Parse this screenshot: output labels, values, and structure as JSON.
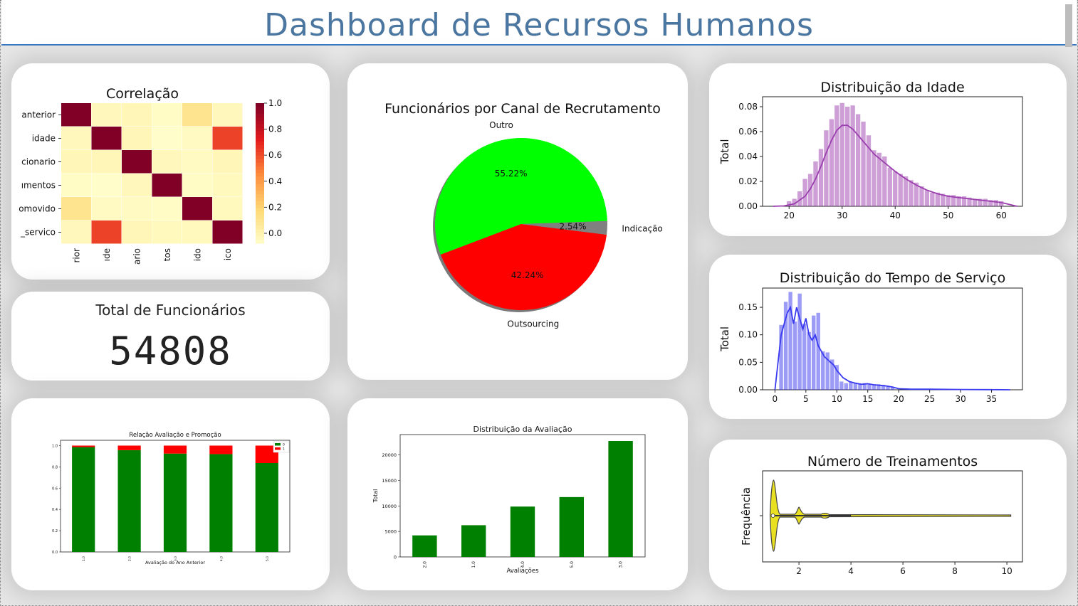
{
  "page_title": "Dashboard de Recursos Humanos",
  "kpi": {
    "title": "Total de Funcionários",
    "value": "54808"
  },
  "chart_data": [
    {
      "id": "correlacao",
      "type": "heatmap",
      "title": "Correlação",
      "row_labels": [
        "anterior",
        "idade",
        "cionario",
        "ımentos",
        "omovido",
        "_servico"
      ],
      "col_labels": [
        "rior",
        "ıde",
        "ario",
        "tos",
        "ido",
        "ico"
      ],
      "values": [
        [
          1.0,
          0.05,
          0.06,
          0.02,
          0.18,
          0.05
        ],
        [
          0.05,
          1.0,
          0.06,
          0.01,
          0.03,
          0.66
        ],
        [
          0.06,
          0.06,
          1.0,
          0.05,
          0.03,
          0.06
        ],
        [
          0.02,
          0.01,
          0.05,
          1.0,
          0.02,
          0.04
        ],
        [
          0.18,
          0.03,
          0.03,
          0.02,
          1.0,
          0.04
        ],
        [
          0.05,
          0.66,
          0.06,
          0.04,
          0.04,
          1.0
        ]
      ],
      "colorbar_ticks": [
        "0.0",
        "0.2",
        "0.4",
        "0.6",
        "0.8",
        "1.0"
      ],
      "vmin": 0,
      "vmax": 1
    },
    {
      "id": "canal",
      "type": "pie",
      "title": "Funcionários por Canal de Recrutamento",
      "slices": [
        {
          "label": "Outro",
          "value": 55.22,
          "pct": "55.22%",
          "color": "#00ff00"
        },
        {
          "label": "Outsourcing",
          "value": 42.24,
          "pct": "42.24%",
          "color": "#ff0000"
        },
        {
          "label": "Indicação",
          "value": 2.54,
          "pct": "2.54%",
          "color": "#808080"
        }
      ]
    },
    {
      "id": "idade",
      "type": "bar",
      "title": "Distribuição da Idade",
      "ylabel": "Total",
      "xlim": [
        15,
        64
      ],
      "ylim": [
        0,
        0.088
      ],
      "xticks": [
        20,
        30,
        40,
        50,
        60
      ],
      "yticks": [
        0,
        0.02,
        0.04,
        0.06,
        0.08
      ],
      "ytick_labels": [
        "0.00",
        "0.02",
        "0.04",
        "0.06",
        "0.08"
      ],
      "bar_width": 0.85,
      "x": [
        20,
        21,
        22,
        23,
        24,
        25,
        26,
        27,
        28,
        29,
        30,
        31,
        32,
        33,
        34,
        35,
        36,
        37,
        38,
        39,
        40,
        41,
        42,
        43,
        44,
        45,
        46,
        47,
        48,
        49,
        50,
        51,
        52,
        53,
        54,
        55,
        56,
        57,
        58,
        59,
        60
      ],
      "values": [
        0.004,
        0.006,
        0.012,
        0.022,
        0.026,
        0.036,
        0.046,
        0.061,
        0.07,
        0.081,
        0.083,
        0.08,
        0.081,
        0.074,
        0.068,
        0.057,
        0.045,
        0.043,
        0.04,
        0.031,
        0.028,
        0.026,
        0.024,
        0.021,
        0.019,
        0.016,
        0.013,
        0.011,
        0.011,
        0.01,
        0.009,
        0.009,
        0.008,
        0.008,
        0.007,
        0.006,
        0.006,
        0.006,
        0.005,
        0.005,
        0.004
      ],
      "kde_x": [
        17,
        19,
        21,
        23,
        24,
        25,
        26,
        27,
        28,
        29,
        30,
        31,
        32,
        33,
        34,
        35,
        36,
        38,
        40,
        42,
        44,
        46,
        48,
        50,
        52,
        54,
        56,
        58,
        60,
        62,
        63
      ],
      "kde_y": [
        0,
        0.0003,
        0.002,
        0.008,
        0.014,
        0.022,
        0.032,
        0.043,
        0.053,
        0.061,
        0.065,
        0.065,
        0.062,
        0.057,
        0.052,
        0.047,
        0.042,
        0.035,
        0.028,
        0.022,
        0.017,
        0.013,
        0.01,
        0.008,
        0.007,
        0.006,
        0.005,
        0.004,
        0.003,
        0.001,
        0
      ],
      "color": "#9b3fae"
    },
    {
      "id": "tempo",
      "type": "bar",
      "title": "Distribuição do Tempo de Serviço",
      "ylabel": "Total",
      "xlim": [
        -2,
        40
      ],
      "ylim": [
        0,
        0.185
      ],
      "xticks": [
        0,
        5,
        10,
        15,
        20,
        25,
        30,
        35
      ],
      "yticks": [
        0,
        0.05,
        0.1,
        0.15
      ],
      "ytick_labels": [
        "0.00",
        "0.05",
        "0.10",
        "0.15"
      ],
      "bar_width": 0.62,
      "x": [
        1,
        1.75,
        2.5,
        3.25,
        4,
        4.75,
        5.5,
        6.25,
        7,
        7.75,
        8.5,
        9.25,
        10,
        10.75,
        11.5,
        12.25,
        13,
        13.75,
        14.5,
        15.25,
        16,
        16.75,
        17.5,
        18.25,
        19
      ],
      "values": [
        0.118,
        0.16,
        0.178,
        0.124,
        0.175,
        0.12,
        0.105,
        0.135,
        0.14,
        0.07,
        0.068,
        0.055,
        0.045,
        0.015,
        0.012,
        0.014,
        0.013,
        0.01,
        0.012,
        0.011,
        0.01,
        0.01,
        0.009,
        0.006,
        0.005
      ],
      "kde_x": [
        0,
        0.5,
        1,
        1.5,
        2,
        2.5,
        3,
        3.5,
        4,
        4.5,
        5,
        5.5,
        6,
        6.5,
        7,
        7.5,
        8,
        8.5,
        9,
        9.5,
        10,
        11,
        12,
        13,
        14,
        15,
        16,
        17,
        18,
        19,
        20,
        22,
        25,
        30,
        35,
        38
      ],
      "kde_y": [
        0,
        0.05,
        0.1,
        0.12,
        0.14,
        0.15,
        0.12,
        0.15,
        0.13,
        0.11,
        0.13,
        0.1,
        0.09,
        0.1,
        0.08,
        0.07,
        0.06,
        0.055,
        0.05,
        0.045,
        0.035,
        0.022,
        0.015,
        0.012,
        0.01,
        0.011,
        0.009,
        0.008,
        0.007,
        0.005,
        0.002,
        0.001,
        0.001,
        0.0005,
        0.0003,
        0
      ],
      "color": "#3a3af0"
    },
    {
      "id": "promocao",
      "type": "bar",
      "title": "Relação Avaliação e Promoção",
      "xlabel": "Avaliação do Ano Anterior",
      "categories": [
        "1.0",
        "2.0",
        "3.0",
        "4.0",
        "5.0"
      ],
      "yticks": [
        0,
        0.2,
        0.4,
        0.6,
        0.8,
        1.0
      ],
      "ytick_labels": [
        "0.0",
        "0.2",
        "0.4",
        "0.6",
        "0.8",
        "1.0"
      ],
      "ylim": [
        0,
        1.05
      ],
      "series": [
        {
          "name": "0",
          "values": [
            0.986,
            0.957,
            0.925,
            0.92,
            0.836
          ],
          "color": "#008000"
        },
        {
          "name": "1",
          "values": [
            0.014,
            0.043,
            0.075,
            0.08,
            0.164
          ],
          "color": "#ff0000"
        }
      ]
    },
    {
      "id": "avaliacao",
      "type": "bar",
      "title": "Distribuição da Avaliação",
      "xlabel": "Avaliações",
      "ylabel": "Total",
      "categories": [
        "2.0",
        "1.0",
        "4.0",
        "5.0",
        "3.0"
      ],
      "values": [
        4225,
        6223,
        9877,
        11741,
        22742
      ],
      "yticks": [
        0,
        5000,
        10000,
        15000,
        20000
      ],
      "ylim": [
        0,
        24000
      ],
      "color": "#008000"
    },
    {
      "id": "treinamentos",
      "type": "violin",
      "title": "Número de Treinamentos",
      "ylabel": "Frequência",
      "xlim": [
        0.6,
        10.6
      ],
      "xticks": [
        2,
        4,
        6,
        8,
        10
      ],
      "color": "#e8e020"
    }
  ]
}
